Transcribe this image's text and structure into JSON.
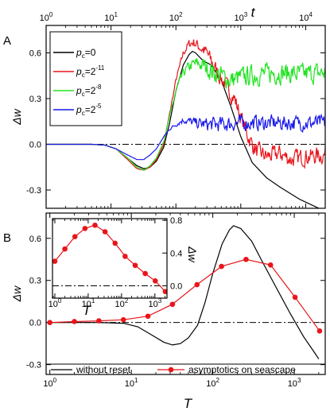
{
  "panel_labels": [
    "A",
    "B"
  ],
  "chart_data": [
    {
      "type": "line",
      "panel": "A",
      "xlabel": "t",
      "ylabel": "Δw",
      "xscale": "log",
      "xlim": [
        1,
        20000
      ],
      "ylim": [
        -0.42,
        0.78
      ],
      "x_ticks": [
        {
          "v": 1,
          "label": "10",
          "sup": "0"
        },
        {
          "v": 10,
          "label": "10",
          "sup": "1"
        },
        {
          "v": 100,
          "label": "10",
          "sup": "2"
        },
        {
          "v": 1000,
          "label": "10",
          "sup": "3"
        },
        {
          "v": 10000,
          "label": "10",
          "sup": "4"
        }
      ],
      "y_ticks": [
        {
          "v": -0.3,
          "label": "-0.3"
        },
        {
          "v": 0.0,
          "label": "0.0"
        },
        {
          "v": 0.3,
          "label": "0.3"
        },
        {
          "v": 0.6,
          "label": "0.6"
        }
      ],
      "reference_line": 0,
      "legend_position": "top-left",
      "series": [
        {
          "name": "p",
          "name_sub": "c",
          "name_eq": "=0",
          "name_sup": "",
          "color": "#000000",
          "noise": 0,
          "points": [
            [
              1,
              0
            ],
            [
              5,
              0
            ],
            [
              8,
              -0.005
            ],
            [
              12,
              -0.03
            ],
            [
              18,
              -0.09
            ],
            [
              25,
              -0.14
            ],
            [
              32,
              -0.16
            ],
            [
              40,
              -0.15
            ],
            [
              50,
              -0.11
            ],
            [
              65,
              -0.02
            ],
            [
              80,
              0.14
            ],
            [
              100,
              0.35
            ],
            [
              130,
              0.52
            ],
            [
              160,
              0.59
            ],
            [
              180,
              0.61
            ],
            [
              200,
              0.6
            ],
            [
              260,
              0.55
            ],
            [
              350,
              0.52
            ],
            [
              500,
              0.42
            ],
            [
              700,
              0.25
            ],
            [
              1000,
              0.05
            ],
            [
              1500,
              -0.12
            ],
            [
              2500,
              -0.22
            ],
            [
              4000,
              -0.28
            ],
            [
              8000,
              -0.36
            ],
            [
              20000,
              -0.44
            ]
          ]
        },
        {
          "name": "p",
          "name_sub": "c",
          "name_eq": "=2",
          "name_sup": "-11",
          "color": "#e8151b",
          "noise": 0.05,
          "points": [
            [
              1,
              0
            ],
            [
              5,
              0
            ],
            [
              8,
              -0.005
            ],
            [
              12,
              -0.03
            ],
            [
              18,
              -0.1
            ],
            [
              25,
              -0.16
            ],
            [
              32,
              -0.17
            ],
            [
              40,
              -0.15
            ],
            [
              50,
              -0.1
            ],
            [
              65,
              0.0
            ],
            [
              80,
              0.2
            ],
            [
              100,
              0.42
            ],
            [
              130,
              0.6
            ],
            [
              160,
              0.66
            ],
            [
              190,
              0.67
            ],
            [
              230,
              0.64
            ],
            [
              300,
              0.6
            ],
            [
              400,
              0.5
            ],
            [
              600,
              0.38
            ],
            [
              800,
              0.3
            ],
            [
              1000,
              0.18
            ],
            [
              1300,
              0.05
            ],
            [
              1700,
              -0.04
            ],
            [
              2500,
              -0.08
            ],
            [
              4000,
              -0.06
            ],
            [
              6000,
              -0.1
            ],
            [
              10000,
              -0.08
            ],
            [
              20000,
              -0.07
            ]
          ]
        },
        {
          "name": "p",
          "name_sub": "c",
          "name_eq": "=2",
          "name_sup": "-8",
          "color": "#22e322",
          "noise": 0.06,
          "points": [
            [
              1,
              0
            ],
            [
              5,
              0
            ],
            [
              8,
              -0.005
            ],
            [
              12,
              -0.03
            ],
            [
              18,
              -0.09
            ],
            [
              25,
              -0.15
            ],
            [
              32,
              -0.17
            ],
            [
              40,
              -0.14
            ],
            [
              50,
              -0.09
            ],
            [
              65,
              0.02
            ],
            [
              80,
              0.18
            ],
            [
              100,
              0.35
            ],
            [
              130,
              0.47
            ],
            [
              160,
              0.51
            ],
            [
              200,
              0.53
            ],
            [
              260,
              0.52
            ],
            [
              350,
              0.48
            ],
            [
              500,
              0.45
            ],
            [
              700,
              0.42
            ],
            [
              1000,
              0.44
            ],
            [
              2000,
              0.46
            ],
            [
              4000,
              0.47
            ],
            [
              8000,
              0.46
            ],
            [
              20000,
              0.47
            ]
          ]
        },
        {
          "name": "p",
          "name_sub": "c",
          "name_eq": "=2",
          "name_sup": "-5",
          "color": "#1818ee",
          "noise": 0.045,
          "points": [
            [
              1,
              0
            ],
            [
              5,
              0
            ],
            [
              8,
              -0.005
            ],
            [
              12,
              -0.03
            ],
            [
              18,
              -0.07
            ],
            [
              25,
              -0.1
            ],
            [
              32,
              -0.1
            ],
            [
              40,
              -0.07
            ],
            [
              50,
              -0.03
            ],
            [
              65,
              0.05
            ],
            [
              80,
              0.1
            ],
            [
              100,
              0.13
            ],
            [
              130,
              0.16
            ],
            [
              200,
              0.14
            ],
            [
              300,
              0.13
            ],
            [
              500,
              0.13
            ],
            [
              1000,
              0.14
            ],
            [
              2000,
              0.14
            ],
            [
              5000,
              0.14
            ],
            [
              10000,
              0.14
            ],
            [
              20000,
              0.14
            ]
          ]
        }
      ]
    },
    {
      "type": "line",
      "panel": "B",
      "xlabel": "T",
      "ylabel": "Δw",
      "xscale": "log",
      "xlim": [
        0.9,
        2400
      ],
      "ylim": [
        -0.37,
        0.78
      ],
      "x_ticks": [
        {
          "v": 1,
          "label": "10",
          "sup": "0"
        },
        {
          "v": 10,
          "label": "10",
          "sup": "1"
        },
        {
          "v": 100,
          "label": "10",
          "sup": "2"
        },
        {
          "v": 1000,
          "label": "10",
          "sup": "3"
        }
      ],
      "y_ticks": [
        {
          "v": -0.3,
          "label": "-0.3"
        },
        {
          "v": 0.0,
          "label": "0.0"
        },
        {
          "v": 0.3,
          "label": "0.3"
        },
        {
          "v": 0.6,
          "label": "0.6"
        }
      ],
      "reference_line": 0,
      "legend_position": "bottom",
      "series": [
        {
          "name": "without reset",
          "color": "#000000",
          "markers": false,
          "points": [
            [
              1,
              0
            ],
            [
              4,
              0
            ],
            [
              8,
              -0.005
            ],
            [
              12,
              -0.03
            ],
            [
              18,
              -0.09
            ],
            [
              25,
              -0.14
            ],
            [
              32,
              -0.16
            ],
            [
              40,
              -0.15
            ],
            [
              50,
              -0.11
            ],
            [
              65,
              -0.02
            ],
            [
              80,
              0.14
            ],
            [
              100,
              0.35
            ],
            [
              130,
              0.56
            ],
            [
              160,
              0.66
            ],
            [
              180,
              0.69
            ],
            [
              220,
              0.67
            ],
            [
              300,
              0.58
            ],
            [
              400,
              0.44
            ],
            [
              600,
              0.25
            ],
            [
              900,
              0.06
            ],
            [
              1300,
              -0.1
            ],
            [
              1800,
              -0.22
            ],
            [
              2000,
              -0.26
            ]
          ]
        },
        {
          "name": "asymptotics on seascape",
          "color": "#e8151b",
          "markers": true,
          "points": [
            [
              1,
              0.0
            ],
            [
              2,
              0.007
            ],
            [
              4,
              0.012
            ],
            [
              8,
              0.02
            ],
            [
              16,
              0.045
            ],
            [
              32,
              0.13
            ],
            [
              64,
              0.27
            ],
            [
              128,
              0.4
            ],
            [
              256,
              0.45
            ],
            [
              512,
              0.41
            ],
            [
              1024,
              0.18
            ],
            [
              2048,
              -0.06
            ]
          ]
        }
      ]
    },
    {
      "type": "line",
      "panel": "B-inset",
      "xlabel": "T",
      "ylabel": "Δw",
      "xscale": "log",
      "xlim": [
        0.85,
        2300
      ],
      "ylim": [
        -0.15,
        0.82
      ],
      "x_ticks": [
        {
          "v": 1,
          "label": "10",
          "sup": "0"
        },
        {
          "v": 10,
          "label": "10",
          "sup": "1"
        },
        {
          "v": 100,
          "label": "10",
          "sup": "2"
        },
        {
          "v": 1000,
          "label": "10",
          "sup": "3"
        }
      ],
      "y_ticks": [
        {
          "v": 0.0,
          "label": "0.0"
        },
        {
          "v": 0.4,
          "label": "0.4"
        },
        {
          "v": 0.8,
          "label": "0.8"
        }
      ],
      "reference_line": 0,
      "series": [
        {
          "name": "",
          "color": "#e8151b",
          "markers": true,
          "points": [
            [
              1,
              0.3
            ],
            [
              2,
              0.45
            ],
            [
              4,
              0.6
            ],
            [
              8,
              0.7
            ],
            [
              16,
              0.74
            ],
            [
              32,
              0.66
            ],
            [
              64,
              0.52
            ],
            [
              128,
              0.36
            ],
            [
              256,
              0.25
            ],
            [
              512,
              0.15
            ],
            [
              1024,
              0.06
            ],
            [
              2048,
              -0.07
            ]
          ]
        }
      ]
    }
  ]
}
